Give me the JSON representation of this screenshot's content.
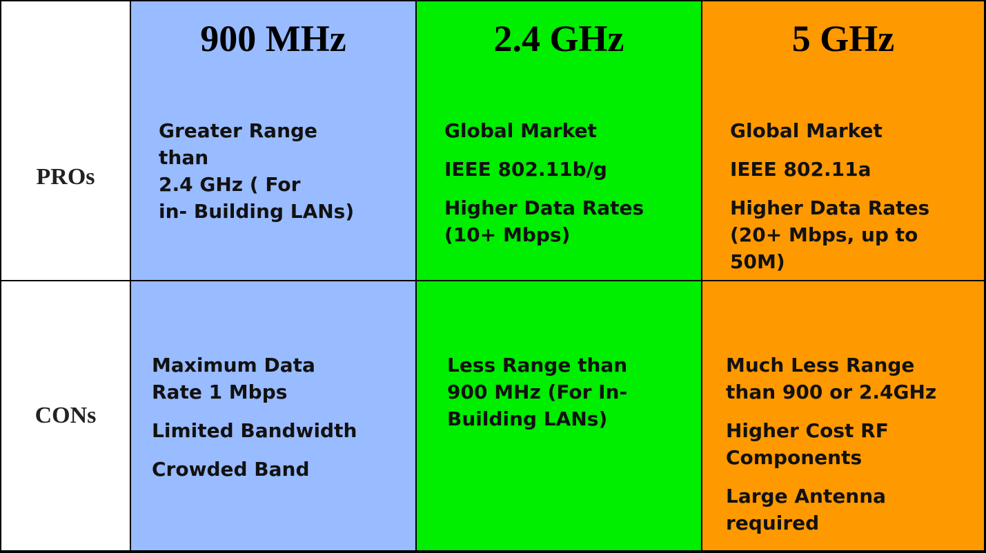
{
  "table": {
    "header": [
      "900 MHz",
      "2.4 GHz",
      "5 GHz"
    ],
    "rows": [
      {
        "label": "PROs",
        "cells": [
          [
            [
              "Greater Range",
              "than",
              "2.4 GHz ( For",
              "in- Building LANs)"
            ]
          ],
          [
            [
              "Global Market"
            ],
            [
              "IEEE 802.11b/g"
            ],
            [
              "Higher Data Rates",
              "(10+ Mbps)"
            ]
          ],
          [
            [
              "Global Market"
            ],
            [
              "IEEE 802.11a"
            ],
            [
              "Higher Data Rates",
              "(20+ Mbps, up to",
              "50M)"
            ]
          ]
        ]
      },
      {
        "label": "CONs",
        "cells": [
          [
            [
              "Maximum Data",
              "Rate 1 Mbps"
            ],
            [
              "Limited Bandwidth"
            ],
            [
              "Crowded Band"
            ]
          ],
          [
            [
              "Less Range than",
              "900 MHz (For In-",
              "Building LANs)"
            ]
          ],
          [
            [
              "Much Less Range",
              "than 900 or 2.4GHz"
            ],
            [
              "Higher Cost RF",
              "Components"
            ],
            [
              "Large Antenna",
              "required"
            ]
          ]
        ]
      }
    ]
  }
}
